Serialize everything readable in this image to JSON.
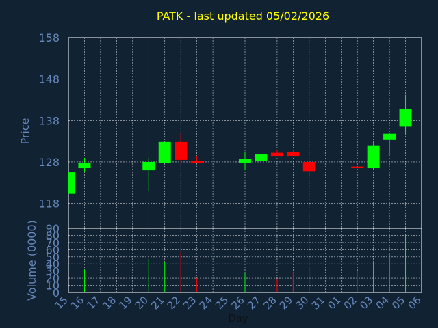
{
  "chart_data": {
    "type": "candlestick",
    "title": "PATK - last updated 05/02/2026",
    "xlabel": "Day",
    "ylabel_price": "Price",
    "ylabel_volume": "Volume (0000)",
    "price_ylim": [
      112,
      158
    ],
    "price_ticks": [
      158,
      148,
      138,
      128,
      118
    ],
    "volume_ylim": [
      0,
      90
    ],
    "volume_ticks": [
      90,
      80,
      70,
      60,
      50,
      40,
      30,
      20,
      10,
      0
    ],
    "grid": true,
    "colors": {
      "background": "#112233",
      "axes": "#ffffff",
      "grid": "#ffffff",
      "text": "#6688bb",
      "title": "#ffff00",
      "up": "#00ff00",
      "down": "#ff0000"
    },
    "categories": [
      "15",
      "16",
      "17",
      "18",
      "19",
      "20",
      "21",
      "22",
      "23",
      "24",
      "25",
      "26",
      "27",
      "28",
      "29",
      "30",
      "31",
      "01",
      "02",
      "03",
      "04",
      "05",
      "06"
    ],
    "candles": [
      {
        "day": "15",
        "open": 120.3,
        "close": 125.5,
        "high": 125.5,
        "low": 120.3,
        "volume": 0
      },
      {
        "day": "16",
        "open": 126.5,
        "close": 127.8,
        "high": 129.0,
        "low": 125.5,
        "volume": 32
      },
      {
        "day": "20",
        "open": 126.0,
        "close": 128.0,
        "high": 129.0,
        "low": 121.0,
        "volume": 47
      },
      {
        "day": "21",
        "open": 127.7,
        "close": 132.8,
        "high": 132.8,
        "low": 127.7,
        "volume": 43
      },
      {
        "day": "22",
        "open": 132.8,
        "close": 128.5,
        "high": 134.8,
        "low": 128.0,
        "volume": 57
      },
      {
        "day": "23",
        "open": 128.2,
        "close": 127.8,
        "high": 129.3,
        "low": 127.8,
        "volume": 20
      },
      {
        "day": "26",
        "open": 127.7,
        "close": 128.7,
        "high": 130.5,
        "low": 126.0,
        "volume": 27
      },
      {
        "day": "27",
        "open": 128.3,
        "close": 129.8,
        "high": 129.8,
        "low": 127.7,
        "volume": 20
      },
      {
        "day": "28",
        "open": 130.2,
        "close": 129.3,
        "high": 130.8,
        "low": 129.3,
        "volume": 19
      },
      {
        "day": "29",
        "open": 130.3,
        "close": 129.3,
        "high": 130.8,
        "low": 129.3,
        "volume": 29
      },
      {
        "day": "30",
        "open": 128.0,
        "close": 125.8,
        "high": 128.2,
        "low": 124.7,
        "volume": 35
      },
      {
        "day": "02",
        "open": 126.9,
        "close": 126.5,
        "high": 126.9,
        "low": 126.5,
        "volume": 30
      },
      {
        "day": "03",
        "open": 126.5,
        "close": 132.0,
        "high": 132.5,
        "low": 126.3,
        "volume": 43
      },
      {
        "day": "04",
        "open": 133.3,
        "close": 134.8,
        "high": 134.8,
        "low": 129.3,
        "volume": 55
      },
      {
        "day": "05",
        "open": 136.5,
        "close": 140.8,
        "high": 144.2,
        "low": 134.7,
        "volume": 82
      }
    ]
  }
}
